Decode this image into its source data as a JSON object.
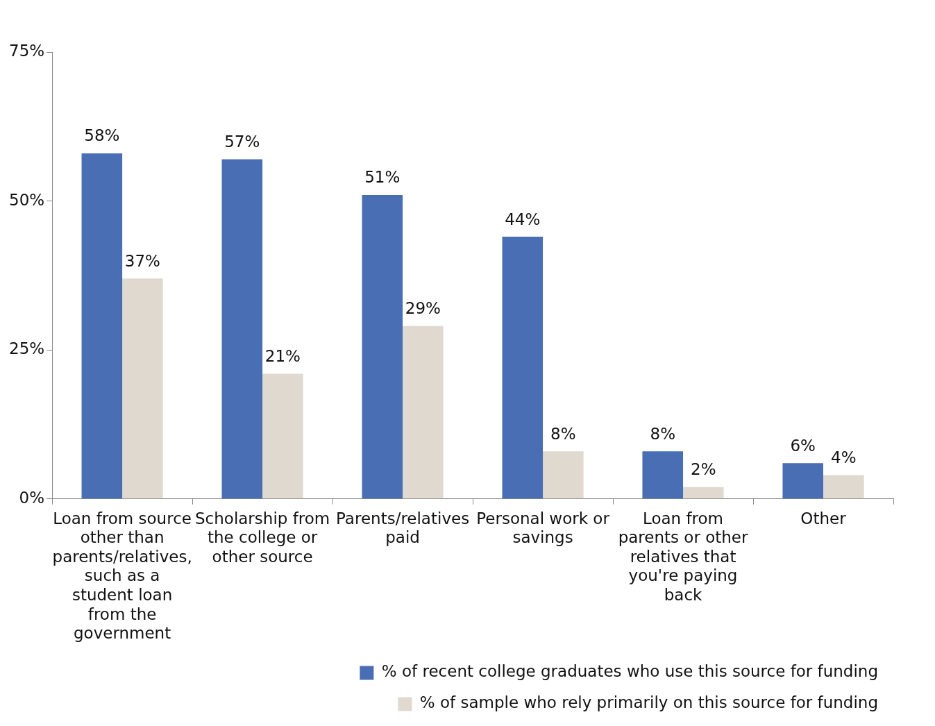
{
  "chart_data": {
    "type": "bar",
    "categories": [
      "Loan from source other than parents/relatives, such as a student loan from the government",
      "Scholarship from the college or other source",
      "Parents/relatives paid",
      "Personal work or savings",
      "Loan from parents or other relatives that you're paying back",
      "Other"
    ],
    "series": [
      {
        "name": "% of recent college graduates who use this source for funding",
        "color": "#4a6eb3",
        "values": [
          58,
          57,
          51,
          44,
          8,
          6
        ],
        "value_labels": [
          "58%",
          "57%",
          "51%",
          "44%",
          "8%",
          "6%"
        ]
      },
      {
        "name": "% of sample who rely primarily on this source for funding",
        "color": "#dfd9d0",
        "values": [
          37,
          21,
          29,
          8,
          2,
          4
        ],
        "value_labels": [
          "37%",
          "21%",
          "29%",
          "8%",
          "2%",
          "4%"
        ]
      }
    ],
    "ylim": [
      0,
      75
    ],
    "yticks": [
      {
        "value": 0,
        "label": "0%"
      },
      {
        "value": 25,
        "label": "25%"
      },
      {
        "value": 50,
        "label": "50%"
      },
      {
        "value": 75,
        "label": "75%"
      }
    ],
    "grid": false,
    "legend": "bottom right"
  }
}
